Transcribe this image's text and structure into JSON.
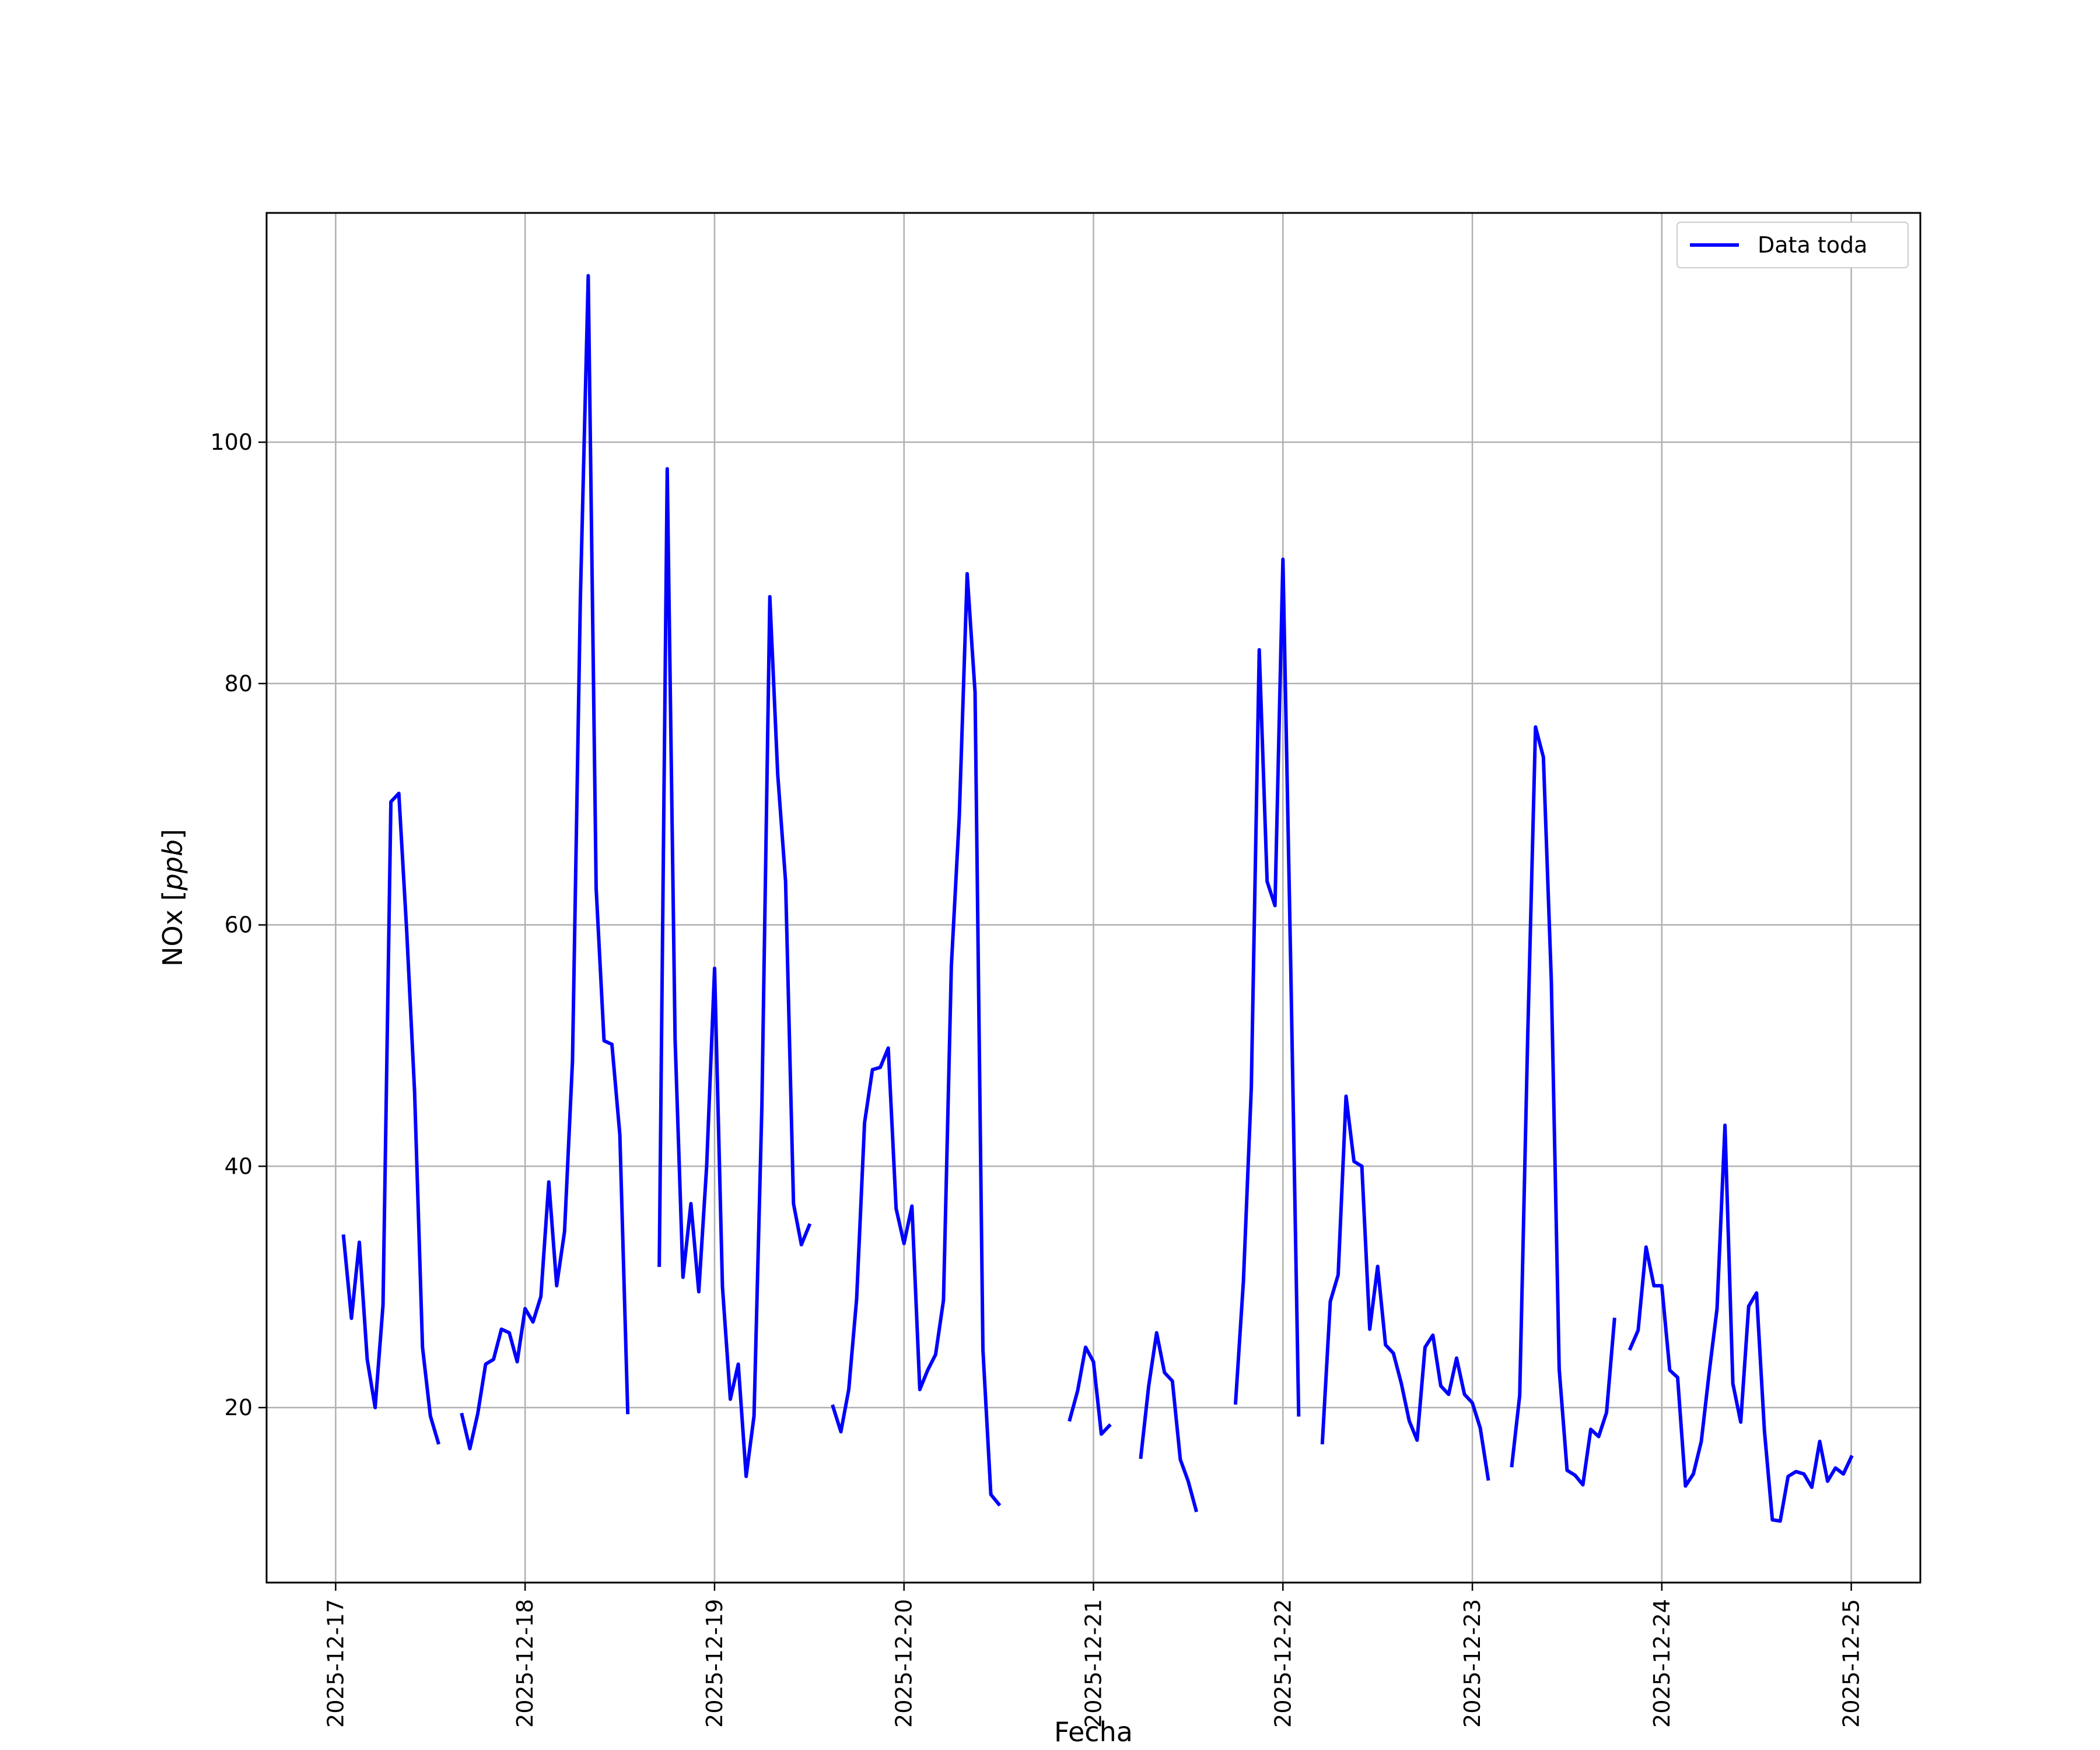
{
  "chart_data": {
    "type": "line",
    "xlabel": "Fecha",
    "ylabel": "NOx [ppb]",
    "ylabel_parts": {
      "main": "NOx [",
      "unit": "ppb",
      "close": "]"
    },
    "xlim": [
      "2025-12-16 15:15",
      "2025-12-25 08:45"
    ],
    "ylim": [
      5.5,
      119
    ],
    "grid": true,
    "legend_position": "top-right",
    "x_ticks": [
      "2025-12-17",
      "2025-12-18",
      "2025-12-19",
      "2025-12-20",
      "2025-12-21",
      "2025-12-22",
      "2025-12-23",
      "2025-12-24",
      "2025-12-25"
    ],
    "y_ticks": [
      20,
      40,
      60,
      80,
      100
    ],
    "series": [
      {
        "name": "Data toda",
        "color": "#0000ff",
        "segments": [
          [
            [
              "2025-12-17 01:00",
              34.2
            ],
            [
              "2025-12-17 02:00",
              27.4
            ],
            [
              "2025-12-17 03:00",
              33.7
            ],
            [
              "2025-12-17 04:00",
              24.0
            ],
            [
              "2025-12-17 05:00",
              20.0
            ],
            [
              "2025-12-17 06:00",
              28.5
            ],
            [
              "2025-12-17 07:00",
              70.2
            ],
            [
              "2025-12-17 08:00",
              70.9
            ],
            [
              "2025-12-17 09:00",
              59.5
            ],
            [
              "2025-12-17 10:00",
              46.2
            ],
            [
              "2025-12-17 11:00",
              25.0
            ],
            [
              "2025-12-17 12:00",
              19.3
            ],
            [
              "2025-12-17 13:00",
              17.1
            ]
          ],
          [
            [
              "2025-12-17 16:00",
              19.4
            ],
            [
              "2025-12-17 17:00",
              16.6
            ],
            [
              "2025-12-17 18:00",
              19.5
            ],
            [
              "2025-12-17 19:00",
              23.6
            ],
            [
              "2025-12-17 20:00",
              24.0
            ],
            [
              "2025-12-17 21:00",
              26.5
            ],
            [
              "2025-12-17 22:00",
              26.2
            ],
            [
              "2025-12-17 23:00",
              23.8
            ],
            [
              "2025-12-18 00:00",
              28.2
            ],
            [
              "2025-12-18 01:00",
              27.1
            ],
            [
              "2025-12-18 02:00",
              29.2
            ],
            [
              "2025-12-18 03:00",
              38.7
            ],
            [
              "2025-12-18 04:00",
              30.1
            ],
            [
              "2025-12-18 05:00",
              34.6
            ],
            [
              "2025-12-18 06:00",
              48.7
            ],
            [
              "2025-12-18 07:00",
              87.0
            ],
            [
              "2025-12-18 08:00",
              113.8
            ],
            [
              "2025-12-18 09:00",
              63.0
            ],
            [
              "2025-12-18 10:00",
              50.4
            ],
            [
              "2025-12-18 11:00",
              50.1
            ],
            [
              "2025-12-18 12:00",
              42.6
            ],
            [
              "2025-12-18 13:00",
              19.6
            ]
          ],
          [
            [
              "2025-12-18 17:00",
              31.8
            ],
            [
              "2025-12-18 18:00",
              97.8
            ],
            [
              "2025-12-18 19:00",
              50.5
            ],
            [
              "2025-12-18 20:00",
              30.8
            ],
            [
              "2025-12-18 21:00",
              36.9
            ],
            [
              "2025-12-18 22:00",
              29.6
            ],
            [
              "2025-12-18 23:00",
              40.0
            ],
            [
              "2025-12-19 00:00",
              56.4
            ],
            [
              "2025-12-19 01:00",
              30.0
            ],
            [
              "2025-12-19 02:00",
              20.7
            ],
            [
              "2025-12-19 03:00",
              23.6
            ],
            [
              "2025-12-19 04:00",
              14.3
            ],
            [
              "2025-12-19 05:00",
              19.3
            ],
            [
              "2025-12-19 06:00",
              45.0
            ],
            [
              "2025-12-19 07:00",
              87.2
            ],
            [
              "2025-12-19 08:00",
              72.5
            ],
            [
              "2025-12-19 09:00",
              63.6
            ],
            [
              "2025-12-19 10:00",
              36.9
            ],
            [
              "2025-12-19 11:00",
              33.5
            ],
            [
              "2025-12-19 12:00",
              35.1
            ]
          ],
          [
            [
              "2025-12-19 15:00",
              20.1
            ],
            [
              "2025-12-19 16:00",
              18.0
            ],
            [
              "2025-12-19 17:00",
              21.5
            ],
            [
              "2025-12-19 18:00",
              29.0
            ],
            [
              "2025-12-19 19:00",
              43.6
            ],
            [
              "2025-12-19 20:00",
              48.0
            ],
            [
              "2025-12-19 21:00",
              48.2
            ],
            [
              "2025-12-19 22:00",
              49.8
            ],
            [
              "2025-12-19 23:00",
              36.5
            ],
            [
              "2025-12-20 00:00",
              33.6
            ],
            [
              "2025-12-20 01:00",
              36.7
            ],
            [
              "2025-12-20 02:00",
              21.5
            ],
            [
              "2025-12-20 03:00",
              23.1
            ],
            [
              "2025-12-20 04:00",
              24.4
            ],
            [
              "2025-12-20 05:00",
              28.9
            ],
            [
              "2025-12-20 06:00",
              56.6
            ],
            [
              "2025-12-20 07:00",
              69.0
            ],
            [
              "2025-12-20 08:00",
              89.1
            ],
            [
              "2025-12-20 09:00",
              79.3
            ],
            [
              "2025-12-20 10:00",
              24.8
            ],
            [
              "2025-12-20 11:00",
              12.8
            ],
            [
              "2025-12-20 12:00",
              12.0
            ]
          ],
          [
            [
              "2025-12-20 21:00",
              19.0
            ],
            [
              "2025-12-20 22:00",
              21.4
            ],
            [
              "2025-12-20 23:00",
              25.0
            ],
            [
              "2025-12-21 00:00",
              23.8
            ],
            [
              "2025-12-21 01:00",
              17.8
            ],
            [
              "2025-12-21 02:00",
              18.5
            ]
          ],
          [
            [
              "2025-12-21 06:00",
              15.9
            ],
            [
              "2025-12-21 07:00",
              21.8
            ],
            [
              "2025-12-21 08:00",
              26.2
            ],
            [
              "2025-12-21 09:00",
              22.9
            ],
            [
              "2025-12-21 10:00",
              22.2
            ],
            [
              "2025-12-21 11:00",
              15.7
            ],
            [
              "2025-12-21 12:00",
              13.9
            ],
            [
              "2025-12-21 13:00",
              11.5
            ]
          ],
          [
            [
              "2025-12-21 18:00",
              20.4
            ],
            [
              "2025-12-21 19:00",
              30.5
            ],
            [
              "2025-12-21 20:00",
              46.5
            ],
            [
              "2025-12-21 21:00",
              82.8
            ],
            [
              "2025-12-21 22:00",
              63.6
            ],
            [
              "2025-12-21 23:00",
              61.6
            ],
            [
              "2025-12-22 00:00",
              90.3
            ],
            [
              "2025-12-22 01:00",
              56.3
            ],
            [
              "2025-12-22 02:00",
              19.4
            ]
          ],
          [
            [
              "2025-12-22 05:00",
              17.1
            ],
            [
              "2025-12-22 06:00",
              28.8
            ],
            [
              "2025-12-22 07:00",
              31.0
            ],
            [
              "2025-12-22 08:00",
              45.8
            ],
            [
              "2025-12-22 09:00",
              40.4
            ],
            [
              "2025-12-22 10:00",
              40.0
            ],
            [
              "2025-12-22 11:00",
              26.5
            ],
            [
              "2025-12-22 12:00",
              31.7
            ],
            [
              "2025-12-22 13:00",
              25.2
            ],
            [
              "2025-12-22 14:00",
              24.5
            ],
            [
              "2025-12-22 15:00",
              22.0
            ],
            [
              "2025-12-22 16:00",
              18.9
            ],
            [
              "2025-12-22 17:00",
              17.3
            ],
            [
              "2025-12-22 18:00",
              25.0
            ],
            [
              "2025-12-22 19:00",
              26.0
            ],
            [
              "2025-12-22 20:00",
              21.8
            ],
            [
              "2025-12-22 21:00",
              21.1
            ],
            [
              "2025-12-22 22:00",
              24.1
            ],
            [
              "2025-12-22 23:00",
              21.1
            ],
            [
              "2025-12-23 00:00",
              20.4
            ],
            [
              "2025-12-23 01:00",
              18.3
            ],
            [
              "2025-12-23 02:00",
              14.1
            ]
          ],
          [
            [
              "2025-12-23 05:00",
              15.2
            ],
            [
              "2025-12-23 06:00",
              21.0
            ],
            [
              "2025-12-23 07:00",
              50.5
            ],
            [
              "2025-12-23 08:00",
              76.4
            ],
            [
              "2025-12-23 09:00",
              73.9
            ],
            [
              "2025-12-23 10:00",
              55.4
            ],
            [
              "2025-12-23 11:00",
              23.2
            ],
            [
              "2025-12-23 12:00",
              14.8
            ],
            [
              "2025-12-23 13:00",
              14.4
            ],
            [
              "2025-12-23 14:00",
              13.6
            ],
            [
              "2025-12-23 15:00",
              18.2
            ],
            [
              "2025-12-23 16:00",
              17.6
            ],
            [
              "2025-12-23 17:00",
              19.6
            ],
            [
              "2025-12-23 18:00",
              27.3
            ]
          ],
          [
            [
              "2025-12-23 20:00",
              24.9
            ],
            [
              "2025-12-23 21:00",
              26.4
            ],
            [
              "2025-12-23 22:00",
              33.3
            ],
            [
              "2025-12-23 23:00",
              30.1
            ],
            [
              "2025-12-24 00:00",
              30.1
            ],
            [
              "2025-12-24 01:00",
              23.1
            ],
            [
              "2025-12-24 02:00",
              22.5
            ],
            [
              "2025-12-24 03:00",
              13.5
            ],
            [
              "2025-12-24 04:00",
              14.5
            ],
            [
              "2025-12-24 05:00",
              17.2
            ],
            [
              "2025-12-24 06:00",
              22.9
            ],
            [
              "2025-12-24 07:00",
              28.2
            ],
            [
              "2025-12-24 08:00",
              43.4
            ],
            [
              "2025-12-24 09:00",
              22.0
            ],
            [
              "2025-12-24 10:00",
              18.8
            ],
            [
              "2025-12-24 11:00",
              28.4
            ],
            [
              "2025-12-24 12:00",
              29.5
            ],
            [
              "2025-12-24 13:00",
              18.1
            ],
            [
              "2025-12-24 14:00",
              10.7
            ],
            [
              "2025-12-24 15:00",
              10.6
            ],
            [
              "2025-12-24 16:00",
              14.3
            ],
            [
              "2025-12-24 17:00",
              14.7
            ],
            [
              "2025-12-24 18:00",
              14.5
            ],
            [
              "2025-12-24 19:00",
              13.4
            ],
            [
              "2025-12-24 20:00",
              17.2
            ],
            [
              "2025-12-24 21:00",
              13.9
            ],
            [
              "2025-12-24 22:00",
              15.0
            ],
            [
              "2025-12-24 23:00",
              14.5
            ],
            [
              "2025-12-25 00:00",
              15.9
            ]
          ]
        ]
      }
    ]
  }
}
